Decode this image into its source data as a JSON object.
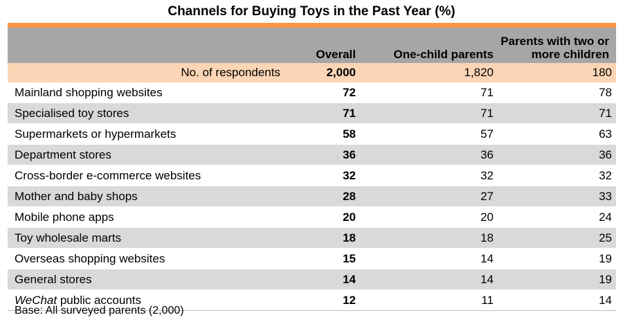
{
  "chart_data": {
    "type": "table",
    "title": "Channels for Buying Toys in the Past Year (%)",
    "columns": [
      "Overall",
      "One-child parents",
      "Parents with two or more children"
    ],
    "respondents": {
      "label": "No. of respondents",
      "values": [
        "2,000",
        "1,820",
        "180"
      ]
    },
    "rows": [
      {
        "label": "Mainland shopping websites",
        "values": [
          72,
          71,
          78
        ]
      },
      {
        "label": "Specialised toy stores",
        "values": [
          71,
          71,
          71
        ]
      },
      {
        "label": "Supermarkets or hypermarkets",
        "values": [
          58,
          57,
          63
        ]
      },
      {
        "label": "Department stores",
        "values": [
          36,
          36,
          36
        ]
      },
      {
        "label": "Cross-border e-commerce websites",
        "values": [
          32,
          32,
          32
        ]
      },
      {
        "label": "Mother and baby shops",
        "values": [
          28,
          27,
          33
        ]
      },
      {
        "label": "Mobile phone apps",
        "values": [
          20,
          20,
          24
        ]
      },
      {
        "label": "Toy wholesale marts",
        "values": [
          18,
          18,
          25
        ]
      },
      {
        "label": "Overseas shopping websites",
        "values": [
          15,
          14,
          19
        ]
      },
      {
        "label": "General stores",
        "values": [
          14,
          14,
          19
        ]
      },
      {
        "label_italic": "WeChat",
        "label_rest": " public accounts",
        "values": [
          12,
          11,
          14
        ]
      }
    ],
    "note": "Base: All surveyed parents (2,000)"
  },
  "colors": {
    "accent_bar": "#f79646",
    "header_bg": "#a6a6a6",
    "respondents_bg": "#fbd5b5",
    "stripe_bg": "#d9d9d9"
  }
}
